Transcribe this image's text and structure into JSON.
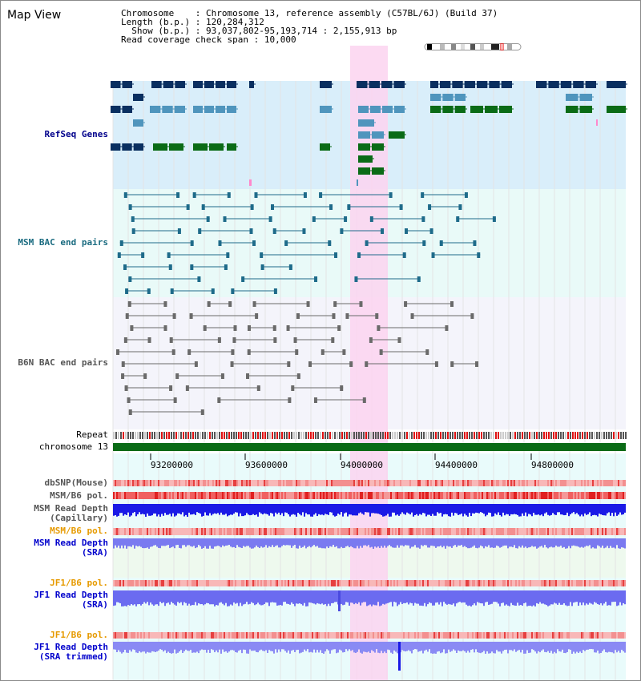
{
  "title": "Map View",
  "info": {
    "chromosome_key": "Chromosome",
    "chromosome_val": "Chromosome 13, reference assembly (C57BL/6J) (Build 37)",
    "length_key": "Length (b.p.)",
    "length_val": "120,284,312",
    "show_key": "Show (b.p.)",
    "show_val": "93,037,802-95,193,714 : 2,155,913 bp",
    "span_key": "Read coverage check span",
    "span_val": "10,000"
  },
  "tracks": {
    "refseq": "RefSeq Genes",
    "msm_bac": "MSM BAC end pairs",
    "b6n_bac": "B6N BAC end pairs",
    "repeat": "Repeat",
    "chromosome": "chromosome 13",
    "dbsnp": "dbSNP(Mouse)",
    "msm_b6_pol_1": "MSM/B6 pol.",
    "msm_read_cap_1": "MSM Read Depth",
    "msm_read_cap_2": "(Capillary)",
    "msm_b6_pol_2": "MSM/B6 pol.",
    "msm_read_sra_1": "MSM Read Depth",
    "msm_read_sra_2": "(SRA)",
    "jf1_b6_pol_1": "JF1/B6 pol.",
    "jf1_read_sra_1": "JF1 Read Depth",
    "jf1_read_sra_2": "(SRA)",
    "jf1_b6_pol_2": "JF1/B6 pol.",
    "jf1_read_trim_1": "JF1 Read Depth",
    "jf1_read_trim_2": "(SRA trimmed)"
  },
  "axis": {
    "ticks": [
      "93200000",
      "93600000",
      "94000000",
      "94400000",
      "94800000"
    ]
  },
  "colors": {
    "refseq_bg": "#d9eefa",
    "msm_bg": "#e9faf8",
    "b6n_bg": "#f4f4fb",
    "highlight": "#fbd4f0",
    "gene_dark": "#0a2f60",
    "gene_mid": "#4f95bd",
    "gene_green": "#0a6b16",
    "msm_line": "#1e6b8a",
    "b6n_line": "#6a6a6a",
    "label_navy": "#00008b",
    "label_teal": "#1a6b80",
    "label_gray": "#555555",
    "label_orange": "#e69a00",
    "label_blue": "#0000cc"
  }
}
